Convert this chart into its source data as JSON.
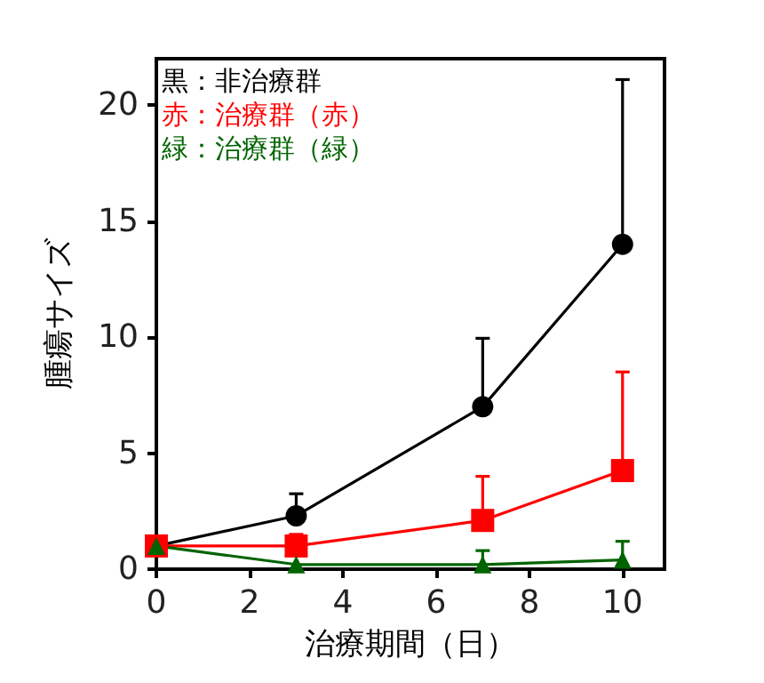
{
  "chart_data": {
    "type": "line",
    "xlabel": "治療期間（日）",
    "ylabel": "腫瘍サイズ",
    "x": [
      0,
      3,
      7,
      10
    ],
    "series": [
      {
        "name": "黒：非治療群",
        "color": "#000000",
        "marker": "circle",
        "values": [
          1.0,
          2.3,
          7.0,
          14.0
        ],
        "errors": [
          null,
          [
            2.3,
            3.25
          ],
          [
            7.0,
            9.95
          ],
          [
            14.0,
            21.1
          ]
        ]
      },
      {
        "name": "赤：治療群（赤）",
        "color": "#ff0000",
        "marker": "square",
        "values": [
          1.0,
          1.0,
          2.1,
          4.25
        ],
        "errors": [
          null,
          [
            1.0,
            1.5
          ],
          [
            2.1,
            4.0
          ],
          [
            4.25,
            8.5
          ]
        ]
      },
      {
        "name": "緑：治療群（緑）",
        "color": "#006400",
        "marker": "triangle",
        "values": [
          1.0,
          0.2,
          0.2,
          0.4
        ],
        "errors": [
          null,
          null,
          [
            0.2,
            0.8
          ],
          [
            0.4,
            1.2
          ]
        ]
      }
    ],
    "xlim": [
      0,
      10.9
    ],
    "xticks": [
      0,
      2,
      4,
      6,
      8,
      10
    ],
    "ylim": [
      0,
      22
    ],
    "yticks": [
      0,
      5,
      10,
      15,
      20
    ],
    "grid": false,
    "legend": "top left",
    "line_style": "solid"
  }
}
